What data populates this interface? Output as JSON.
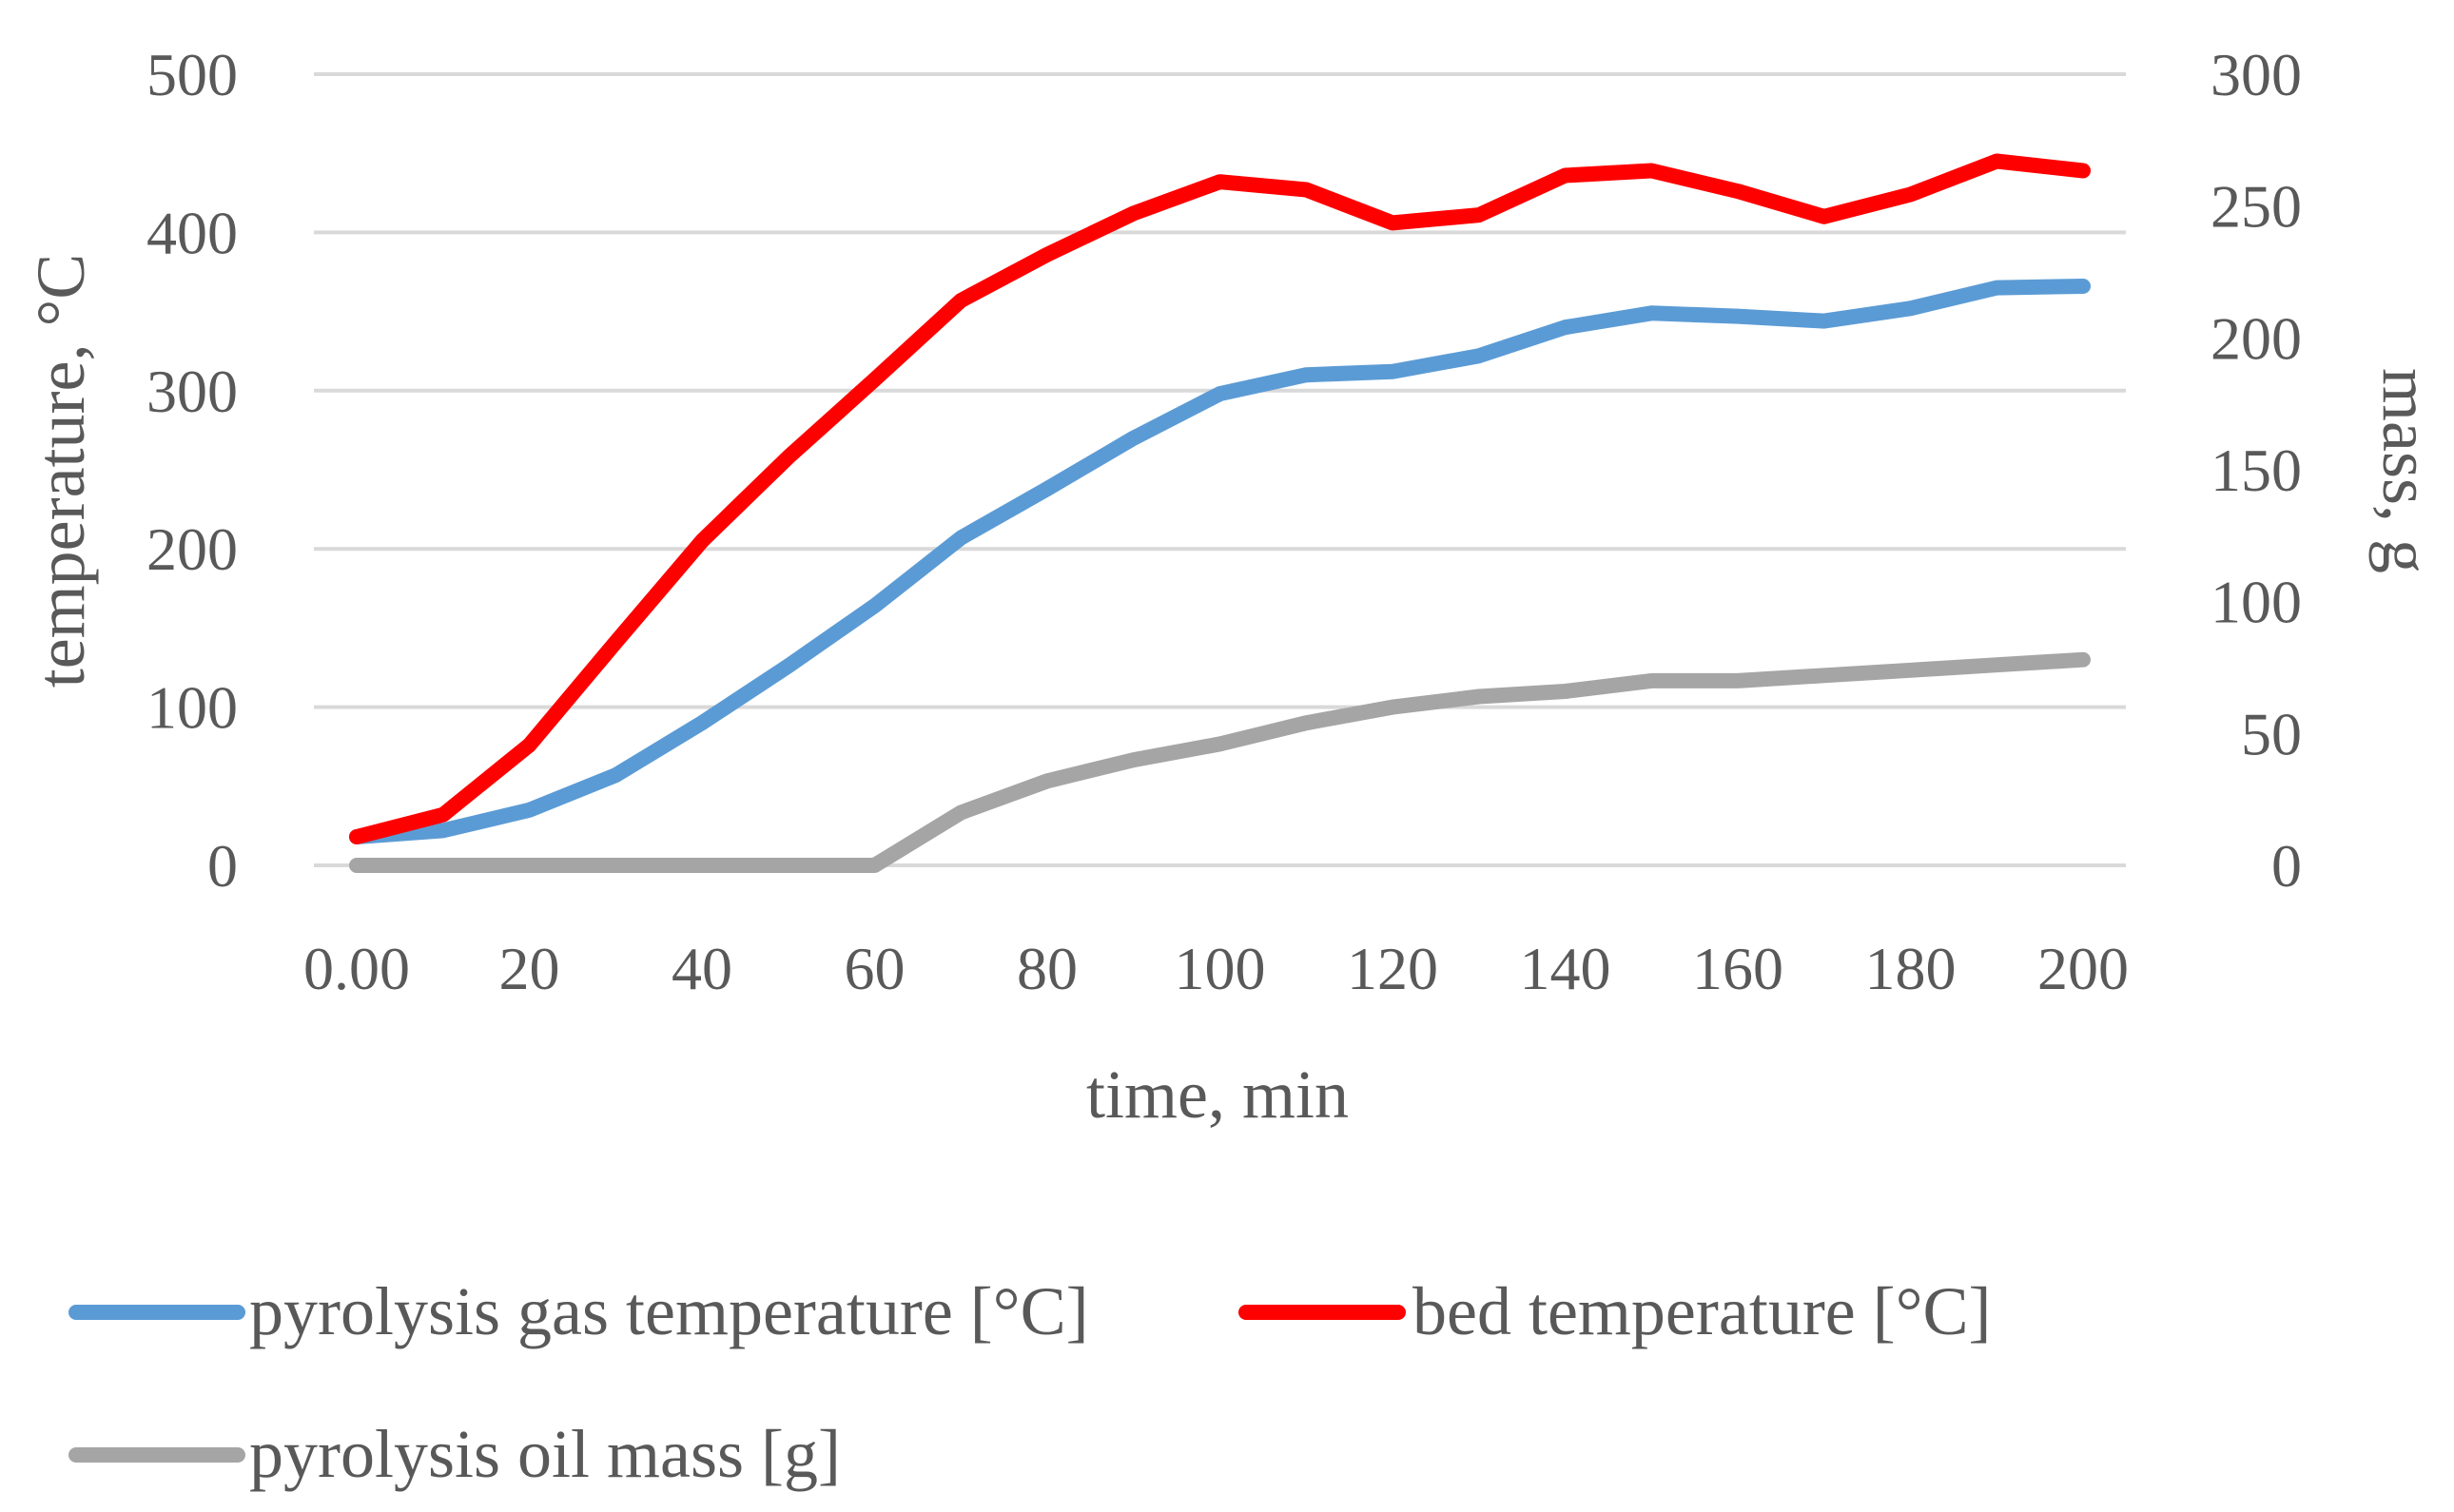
{
  "chart_data": {
    "type": "line",
    "title": "",
    "xlabel": "time, min",
    "ylabel_left": "temperature, °C",
    "ylabel_right": "mass, g",
    "xlim": [
      0,
      200
    ],
    "ylim_left": [
      0,
      500
    ],
    "ylim_right": [
      0,
      300
    ],
    "x_tick_labels": [
      "0.00",
      "20",
      "40",
      "60",
      "80",
      "100",
      "120",
      "140",
      "160",
      "180",
      "200"
    ],
    "y_left_tick_labels": [
      "0",
      "100",
      "200",
      "300",
      "400",
      "500"
    ],
    "y_right_tick_labels": [
      "0",
      "50",
      "100",
      "150",
      "200",
      "250",
      "300"
    ],
    "grid": true,
    "legend_position": "bottom",
    "x": [
      0,
      10,
      20,
      30,
      40,
      50,
      60,
      70,
      80,
      90,
      100,
      110,
      120,
      130,
      140,
      150,
      160,
      170,
      180,
      190,
      200
    ],
    "series": [
      {
        "name": "pyrolysis gas temperature [°C]",
        "axis": "left",
        "color": "#5b9bd5",
        "values": [
          18,
          22,
          35,
          57,
          90,
          126,
          164,
          207,
          238,
          270,
          298,
          310,
          312,
          322,
          340,
          349,
          347,
          344,
          352,
          365,
          366
        ]
      },
      {
        "name": "bed temperature [°C]",
        "axis": "left",
        "color": "#ff0000",
        "values": [
          18,
          32,
          76,
          141,
          205,
          258,
          307,
          357,
          386,
          412,
          432,
          427,
          406,
          411,
          436,
          439,
          426,
          410,
          424,
          445,
          439
        ]
      },
      {
        "name": "pyrolysis oil mass [g]",
        "axis": "right",
        "color": "#a5a5a5",
        "values": [
          0,
          0,
          0,
          0,
          0,
          0,
          0,
          20,
          32,
          40,
          46,
          54,
          60,
          64,
          66,
          70,
          70,
          72,
          74,
          76,
          78
        ]
      }
    ]
  }
}
